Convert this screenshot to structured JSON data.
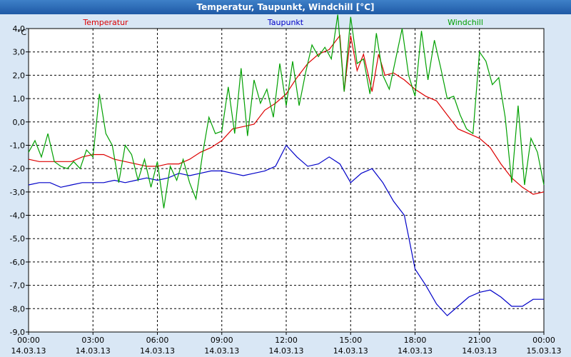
{
  "window": {
    "title": "Temperatur, Taupunkt, Windchill [°C]"
  },
  "chart_data": {
    "type": "line",
    "ylabel": "°C",
    "ylim": [
      -9.0,
      4.0
    ],
    "xlim": [
      "14.03.13 00:00",
      "15.03.13 00:00"
    ],
    "grid": true,
    "y_ticks": [
      "4,0",
      "3,0",
      "2,0",
      "1,0",
      "0,0",
      "-1,0",
      "-2,0",
      "-3,0",
      "-4,0",
      "-5,0",
      "-6,0",
      "-7,0",
      "-8,0",
      "-9,0"
    ],
    "x_ticks": [
      {
        "time": "00:00",
        "date": "14.03.13"
      },
      {
        "time": "03:00",
        "date": "14.03.13"
      },
      {
        "time": "06:00",
        "date": "14.03.13"
      },
      {
        "time": "09:00",
        "date": "14.03.13"
      },
      {
        "time": "12:00",
        "date": "14.03.13"
      },
      {
        "time": "15:00",
        "date": "14.03.13"
      },
      {
        "time": "18:00",
        "date": "14.03.13"
      },
      {
        "time": "21:00",
        "date": "14.03.13"
      },
      {
        "time": "00:00",
        "date": "15.03.13"
      }
    ],
    "series": [
      {
        "name": "Temperatur",
        "color": "#dd0000",
        "points": [
          [
            0.0,
            -1.6
          ],
          [
            0.5,
            -1.7
          ],
          [
            1.0,
            -1.7
          ],
          [
            1.5,
            -1.7
          ],
          [
            2.0,
            -1.7
          ],
          [
            2.5,
            -1.5
          ],
          [
            3.0,
            -1.4
          ],
          [
            3.5,
            -1.4
          ],
          [
            4.0,
            -1.6
          ],
          [
            4.5,
            -1.7
          ],
          [
            5.0,
            -1.8
          ],
          [
            5.5,
            -1.9
          ],
          [
            6.0,
            -1.9
          ],
          [
            6.5,
            -1.8
          ],
          [
            7.0,
            -1.8
          ],
          [
            7.5,
            -1.6
          ],
          [
            8.0,
            -1.3
          ],
          [
            8.5,
            -1.1
          ],
          [
            9.0,
            -0.8
          ],
          [
            9.5,
            -0.3
          ],
          [
            10.0,
            -0.2
          ],
          [
            10.5,
            -0.1
          ],
          [
            11.0,
            0.5
          ],
          [
            11.5,
            0.8
          ],
          [
            12.0,
            1.2
          ],
          [
            12.5,
            1.9
          ],
          [
            13.0,
            2.5
          ],
          [
            13.5,
            2.9
          ],
          [
            14.0,
            3.1
          ],
          [
            14.5,
            3.7
          ],
          [
            14.7,
            1.3
          ],
          [
            15.0,
            3.7
          ],
          [
            15.3,
            2.2
          ],
          [
            15.6,
            2.9
          ],
          [
            16.0,
            1.3
          ],
          [
            16.3,
            2.9
          ],
          [
            16.6,
            2.0
          ],
          [
            17.0,
            2.1
          ],
          [
            17.5,
            1.8
          ],
          [
            18.0,
            1.4
          ],
          [
            18.5,
            1.1
          ],
          [
            19.0,
            0.9
          ],
          [
            19.5,
            0.3
          ],
          [
            20.0,
            -0.3
          ],
          [
            20.5,
            -0.5
          ],
          [
            21.0,
            -0.7
          ],
          [
            21.5,
            -1.1
          ],
          [
            22.0,
            -1.8
          ],
          [
            22.5,
            -2.4
          ],
          [
            23.0,
            -2.8
          ],
          [
            23.5,
            -3.1
          ],
          [
            24.0,
            -3.0
          ]
        ]
      },
      {
        "name": "Taupunkt",
        "color": "#0000c8",
        "points": [
          [
            0.0,
            -2.7
          ],
          [
            0.5,
            -2.6
          ],
          [
            1.0,
            -2.6
          ],
          [
            1.5,
            -2.8
          ],
          [
            2.0,
            -2.7
          ],
          [
            2.5,
            -2.6
          ],
          [
            3.0,
            -2.6
          ],
          [
            3.5,
            -2.6
          ],
          [
            4.0,
            -2.5
          ],
          [
            4.5,
            -2.6
          ],
          [
            5.0,
            -2.5
          ],
          [
            5.5,
            -2.4
          ],
          [
            6.0,
            -2.5
          ],
          [
            6.5,
            -2.4
          ],
          [
            7.0,
            -2.2
          ],
          [
            7.5,
            -2.3
          ],
          [
            8.0,
            -2.2
          ],
          [
            8.5,
            -2.1
          ],
          [
            9.0,
            -2.1
          ],
          [
            9.5,
            -2.2
          ],
          [
            10.0,
            -2.3
          ],
          [
            10.5,
            -2.2
          ],
          [
            11.0,
            -2.1
          ],
          [
            11.5,
            -1.9
          ],
          [
            12.0,
            -1.0
          ],
          [
            12.5,
            -1.5
          ],
          [
            13.0,
            -1.9
          ],
          [
            13.5,
            -1.8
          ],
          [
            14.0,
            -1.5
          ],
          [
            14.5,
            -1.8
          ],
          [
            15.0,
            -2.6
          ],
          [
            15.5,
            -2.2
          ],
          [
            16.0,
            -2.0
          ],
          [
            16.5,
            -2.6
          ],
          [
            17.0,
            -3.4
          ],
          [
            17.5,
            -4.0
          ],
          [
            18.0,
            -6.3
          ],
          [
            18.5,
            -7.0
          ],
          [
            19.0,
            -7.8
          ],
          [
            19.5,
            -8.3
          ],
          [
            20.0,
            -7.9
          ],
          [
            20.5,
            -7.5
          ],
          [
            21.0,
            -7.3
          ],
          [
            21.5,
            -7.2
          ],
          [
            22.0,
            -7.5
          ],
          [
            22.5,
            -7.9
          ],
          [
            23.0,
            -7.9
          ],
          [
            23.5,
            -7.6
          ],
          [
            24.0,
            -7.6
          ]
        ]
      },
      {
        "name": "Windchill",
        "color": "#00a000",
        "points": [
          [
            0.0,
            -1.3
          ],
          [
            0.3,
            -0.8
          ],
          [
            0.6,
            -1.5
          ],
          [
            0.9,
            -0.5
          ],
          [
            1.2,
            -1.7
          ],
          [
            1.5,
            -1.9
          ],
          [
            1.8,
            -2.0
          ],
          [
            2.1,
            -1.7
          ],
          [
            2.4,
            -2.0
          ],
          [
            2.7,
            -1.2
          ],
          [
            3.0,
            -1.5
          ],
          [
            3.3,
            1.2
          ],
          [
            3.6,
            -0.5
          ],
          [
            3.9,
            -1.0
          ],
          [
            4.2,
            -2.6
          ],
          [
            4.5,
            -1.0
          ],
          [
            4.8,
            -1.4
          ],
          [
            5.1,
            -2.5
          ],
          [
            5.4,
            -1.6
          ],
          [
            5.7,
            -2.8
          ],
          [
            6.0,
            -1.7
          ],
          [
            6.3,
            -3.7
          ],
          [
            6.6,
            -1.9
          ],
          [
            6.9,
            -2.5
          ],
          [
            7.2,
            -1.6
          ],
          [
            7.5,
            -2.6
          ],
          [
            7.8,
            -3.3
          ],
          [
            8.1,
            -1.4
          ],
          [
            8.4,
            0.2
          ],
          [
            8.7,
            -0.5
          ],
          [
            9.0,
            -0.4
          ],
          [
            9.3,
            1.5
          ],
          [
            9.6,
            -0.5
          ],
          [
            9.9,
            2.3
          ],
          [
            10.2,
            -0.6
          ],
          [
            10.5,
            1.8
          ],
          [
            10.8,
            0.8
          ],
          [
            11.1,
            1.4
          ],
          [
            11.4,
            0.2
          ],
          [
            11.7,
            2.5
          ],
          [
            12.0,
            0.7
          ],
          [
            12.3,
            2.6
          ],
          [
            12.6,
            0.7
          ],
          [
            12.9,
            2.1
          ],
          [
            13.2,
            3.3
          ],
          [
            13.5,
            2.8
          ],
          [
            13.8,
            3.2
          ],
          [
            14.1,
            2.7
          ],
          [
            14.4,
            4.6
          ],
          [
            14.7,
            1.3
          ],
          [
            15.0,
            4.5
          ],
          [
            15.3,
            2.5
          ],
          [
            15.6,
            2.7
          ],
          [
            15.9,
            1.2
          ],
          [
            16.2,
            3.8
          ],
          [
            16.5,
            2.0
          ],
          [
            16.8,
            1.4
          ],
          [
            17.1,
            2.7
          ],
          [
            17.4,
            4.0
          ],
          [
            17.7,
            2.0
          ],
          [
            18.0,
            1.1
          ],
          [
            18.3,
            3.9
          ],
          [
            18.6,
            1.8
          ],
          [
            18.9,
            3.5
          ],
          [
            19.2,
            2.3
          ],
          [
            19.5,
            1.0
          ],
          [
            19.8,
            1.1
          ],
          [
            20.1,
            0.3
          ],
          [
            20.4,
            -0.3
          ],
          [
            20.7,
            -0.5
          ],
          [
            21.0,
            3.0
          ],
          [
            21.3,
            2.6
          ],
          [
            21.6,
            1.6
          ],
          [
            21.9,
            1.9
          ],
          [
            22.2,
            0.2
          ],
          [
            22.5,
            -2.6
          ],
          [
            22.8,
            0.7
          ],
          [
            23.1,
            -2.7
          ],
          [
            23.4,
            -0.7
          ],
          [
            23.7,
            -1.3
          ],
          [
            24.0,
            -2.7
          ]
        ]
      }
    ]
  }
}
